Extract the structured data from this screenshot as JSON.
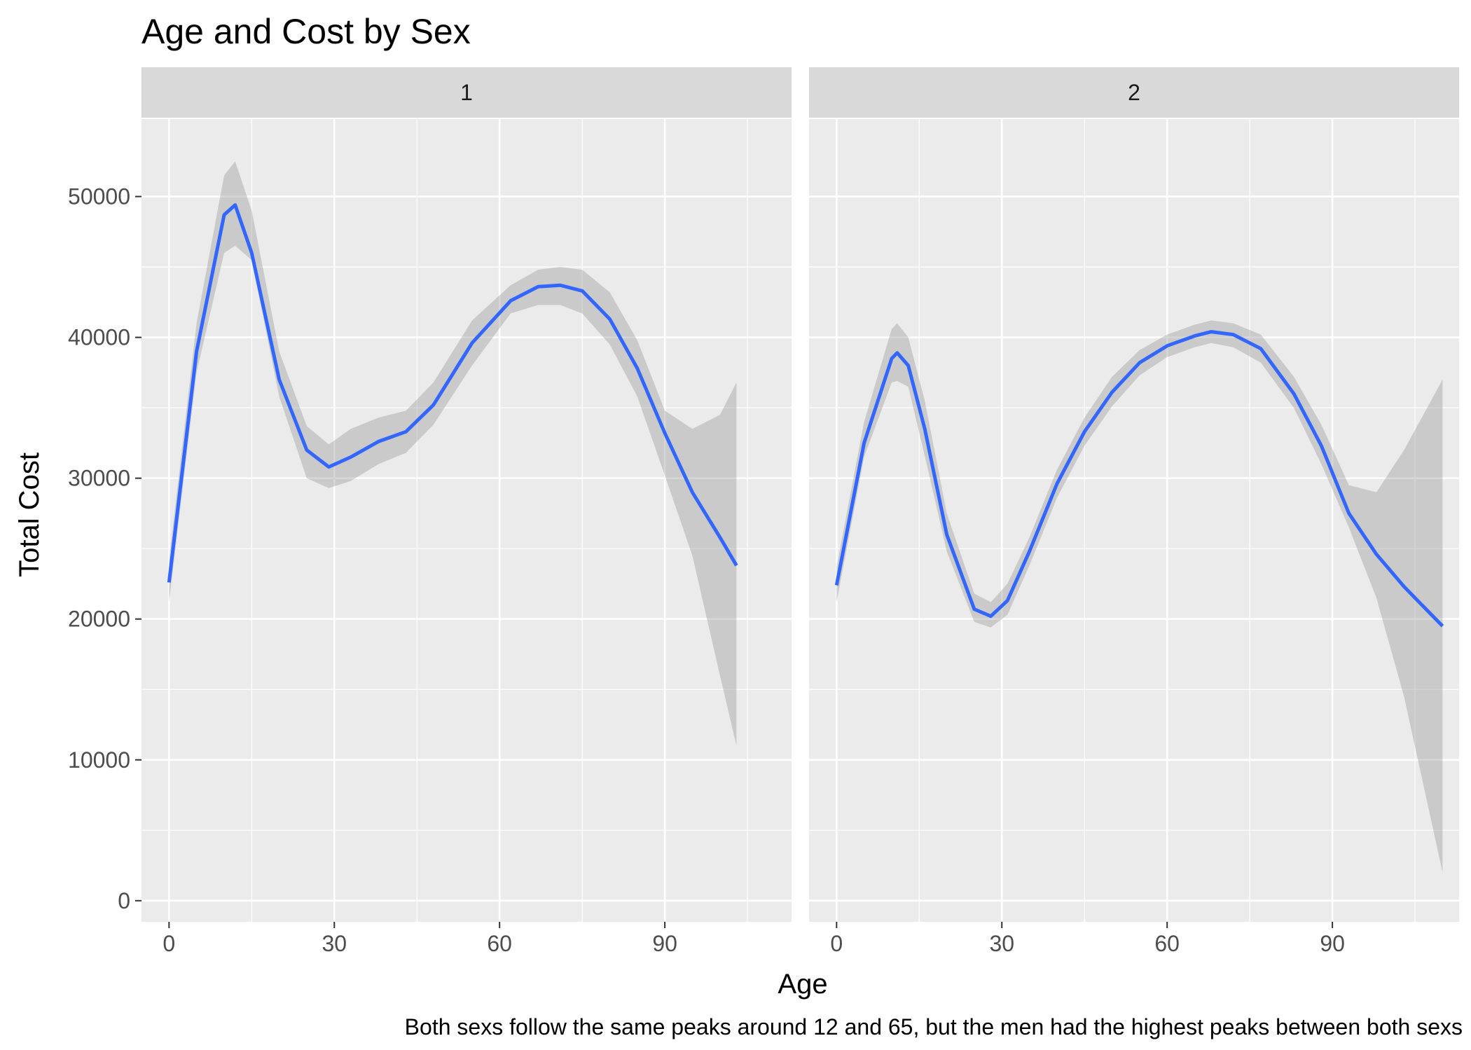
{
  "chart_data": {
    "type": "line",
    "title": "Age and Cost by Sex",
    "xlabel": "Age",
    "ylabel": "Total Cost",
    "caption": "Both sexs follow the same peaks around 12 and 65, but the men had the highest peaks between both sexs",
    "xlim": [
      -5,
      113
    ],
    "ylim": [
      -1500,
      55500
    ],
    "x_ticks": [
      0,
      30,
      60,
      90
    ],
    "x_tick_labels": [
      "0",
      "30",
      "60",
      "90"
    ],
    "y_ticks": [
      0,
      10000,
      20000,
      30000,
      40000,
      50000
    ],
    "y_tick_labels": [
      "0",
      "10000",
      "20000",
      "30000",
      "40000",
      "50000"
    ],
    "grid": true,
    "colors": {
      "line": "#3366FF",
      "ribbon": "#999999",
      "panel_bg": "#EBEBEB",
      "strip_bg": "#D9D9D9",
      "grid": "#FFFFFF"
    },
    "panels": [
      {
        "strip": "1",
        "x": [
          0,
          5,
          10,
          12,
          15,
          20,
          25,
          29,
          33,
          38,
          43,
          48,
          55,
          62,
          67,
          71,
          75,
          80,
          85,
          90,
          95,
          100,
          103
        ],
        "y": [
          22600,
          39000,
          48700,
          49400,
          46000,
          37000,
          32000,
          30800,
          31500,
          32600,
          33300,
          35200,
          39600,
          42600,
          43600,
          43700,
          43300,
          41300,
          37800,
          33200,
          29000,
          25800,
          23800
        ],
        "ymin": [
          21200,
          37500,
          46000,
          46500,
          45500,
          35800,
          30000,
          29300,
          29800,
          31000,
          31800,
          33800,
          38000,
          41700,
          42300,
          42300,
          41700,
          39500,
          35800,
          30200,
          24500,
          16000,
          11000
        ],
        "ymax": [
          24200,
          41000,
          51500,
          52500,
          49000,
          39000,
          33700,
          32400,
          33500,
          34300,
          34800,
          36800,
          41200,
          43700,
          44800,
          45000,
          44800,
          43200,
          39800,
          34800,
          33500,
          34500,
          36800
        ]
      },
      {
        "strip": "2",
        "x": [
          0,
          5,
          10,
          11,
          13,
          16,
          20,
          25,
          28,
          31,
          35,
          40,
          45,
          50,
          55,
          60,
          65,
          68,
          72,
          77,
          83,
          88,
          93,
          98,
          103,
          110
        ],
        "y": [
          22400,
          32500,
          38500,
          38900,
          38000,
          33500,
          26000,
          20700,
          20200,
          21300,
          24800,
          29600,
          33300,
          36100,
          38200,
          39400,
          40100,
          40400,
          40200,
          39200,
          36000,
          32300,
          27500,
          24600,
          22300,
          19500
        ],
        "ymin": [
          21200,
          31500,
          36800,
          36900,
          36500,
          31600,
          24800,
          19800,
          19400,
          20300,
          23800,
          28600,
          32300,
          35100,
          37300,
          38600,
          39300,
          39600,
          39300,
          38200,
          35000,
          31000,
          26500,
          21500,
          14500,
          2000
        ],
        "ymax": [
          23700,
          34000,
          40600,
          41000,
          40000,
          35500,
          27500,
          21800,
          21200,
          22500,
          25800,
          30600,
          34300,
          37200,
          39100,
          40200,
          40900,
          41200,
          41000,
          40200,
          37200,
          33800,
          29500,
          29000,
          32000,
          37000
        ]
      }
    ]
  }
}
